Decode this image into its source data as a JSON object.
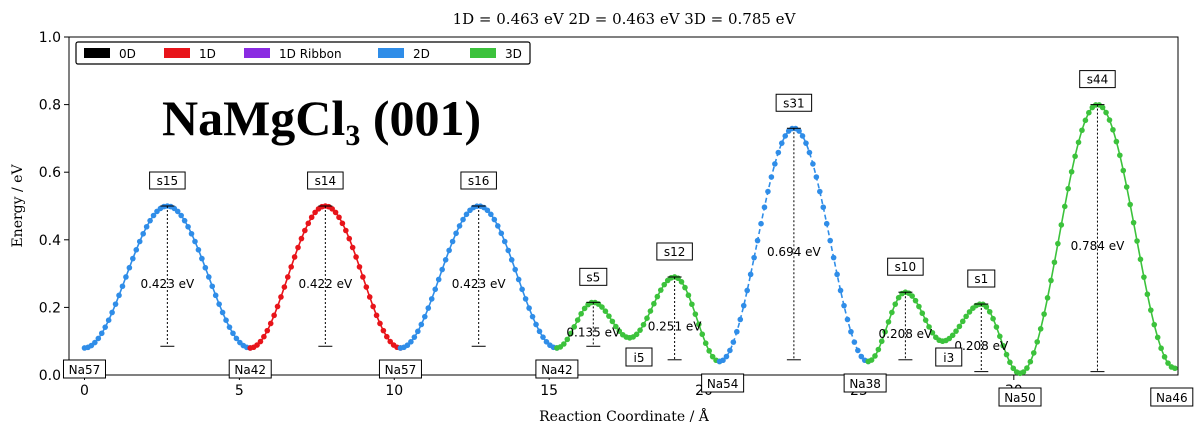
{
  "header": {
    "text": "1D = 0.463 eV      2D = 0.463 eV      3D = 0.785 eV"
  },
  "overlay_title": {
    "main": "NaMgCl",
    "sub": "3",
    "tail": " (001)"
  },
  "colors": {
    "0D": "#000000",
    "1D": "#e8141a",
    "1D Ribbon": "#8a2be2",
    "2D": "#2f8de8",
    "3D": "#3cc23c"
  },
  "chart_data": {
    "type": "line",
    "xlabel": "Reaction Coordinate / Å",
    "ylabel": "Energy / eV",
    "xlim": [
      -0.5,
      35.3
    ],
    "ylim": [
      0,
      1.0
    ],
    "xticks": [
      0,
      5,
      10,
      15,
      20,
      25,
      30
    ],
    "yticks": [
      0.0,
      0.2,
      0.4,
      0.6,
      0.8,
      1.0
    ],
    "ytick_labels": [
      "0.0",
      "0.2",
      "0.4",
      "0.6",
      "0.8",
      "1.0"
    ],
    "legend": {
      "position": "top-left",
      "entries": [
        "0D",
        "1D",
        "1D Ribbon",
        "2D",
        "3D"
      ]
    },
    "segments": [
      {
        "class": "2D",
        "style": "solid",
        "x0": 0.0,
        "x1": 5.35,
        "e0": 0.08,
        "e1": 0.08,
        "peak": 0.5,
        "saddle": "s15",
        "barrier_label": "0.423 eV"
      },
      {
        "class": "1D",
        "style": "solid",
        "x0": 5.35,
        "x1": 10.2,
        "e0": 0.08,
        "e1": 0.08,
        "peak": 0.5,
        "saddle": "s14",
        "barrier_label": "0.422 eV"
      },
      {
        "class": "2D",
        "style": "solid",
        "x0": 10.2,
        "x1": 15.25,
        "e0": 0.08,
        "e1": 0.08,
        "peak": 0.5,
        "saddle": "s16",
        "barrier_label": "0.423 eV"
      },
      {
        "class": "3D",
        "style": "solid",
        "x0": 15.25,
        "x1": 17.6,
        "e0": 0.08,
        "e1": 0.11,
        "peak": 0.215,
        "saddle": "s5",
        "barrier_label": "0.135 eV"
      },
      {
        "class": "3D",
        "style": "solid",
        "x0": 17.6,
        "x1": 20.5,
        "e0": 0.11,
        "e1": 0.04,
        "peak": 0.29,
        "saddle": "s12",
        "barrier_label": "0.251 eV"
      },
      {
        "class": "2D",
        "style": "dashed",
        "x0": 20.5,
        "x1": 25.3,
        "e0": 0.04,
        "e1": 0.04,
        "peak": 0.73,
        "saddle": "s31",
        "barrier_label": "0.694 eV"
      },
      {
        "class": "3D",
        "style": "solid",
        "x0": 25.3,
        "x1": 27.7,
        "e0": 0.04,
        "e1": 0.1,
        "peak": 0.245,
        "saddle": "s10",
        "barrier_label": "0.208 eV"
      },
      {
        "class": "3D",
        "style": "solid",
        "x0": 27.7,
        "x1": 30.2,
        "e0": 0.1,
        "e1": 0.005,
        "peak": 0.21,
        "saddle": "s1",
        "barrier_label": "0.208 eV"
      },
      {
        "class": "3D",
        "style": "solid",
        "x0": 30.2,
        "x1": 35.2,
        "e0": 0.005,
        "e1": 0.02,
        "peak": 0.8,
        "saddle": "s44",
        "barrier_label": "0.784 eV"
      }
    ],
    "site_labels": [
      {
        "x": 0.0,
        "text": "Na57",
        "row": 0
      },
      {
        "x": 5.35,
        "text": "Na42",
        "row": 0
      },
      {
        "x": 10.2,
        "text": "Na57",
        "row": 0
      },
      {
        "x": 15.25,
        "text": "Na42",
        "row": 0
      },
      {
        "x": 17.9,
        "text": "i5",
        "row": -1
      },
      {
        "x": 20.6,
        "text": "Na54",
        "row": 1
      },
      {
        "x": 25.2,
        "text": "Na38",
        "row": 1
      },
      {
        "x": 27.9,
        "text": "i3",
        "row": -1
      },
      {
        "x": 30.2,
        "text": "Na50",
        "row": 2
      },
      {
        "x": 35.1,
        "text": "Na46",
        "row": 2
      }
    ]
  }
}
